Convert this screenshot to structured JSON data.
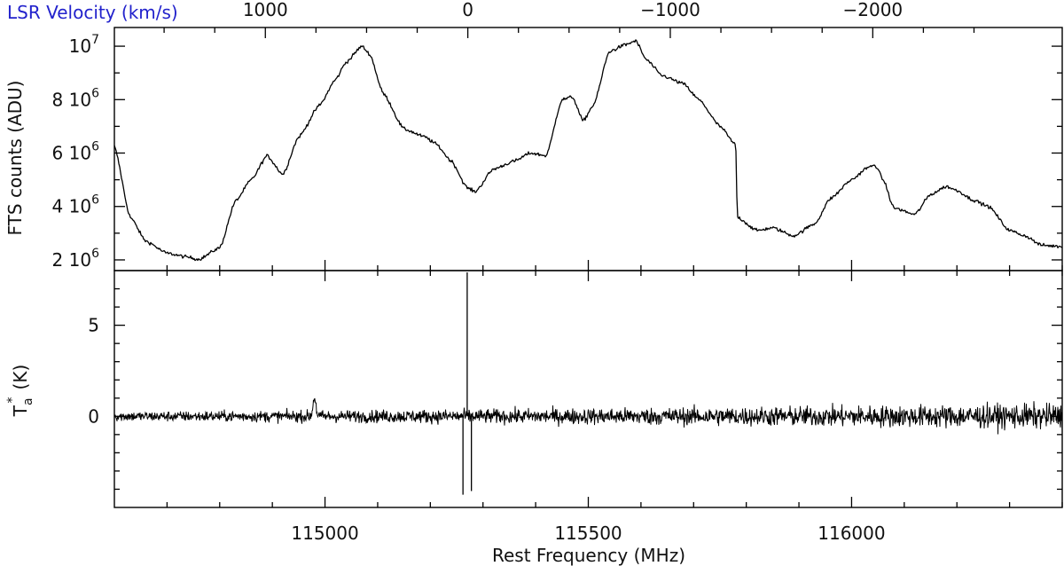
{
  "chart_data": [
    {
      "type": "line",
      "panel": "top",
      "ylabel": "FTS counts (ADU)",
      "top_axis_title": "LSR Velocity (km/s)",
      "top_axis_tick_labels": [
        "1000",
        "0",
        "−1000",
        "−2000"
      ],
      "top_axis_tick_values": [
        1000,
        0,
        -1000,
        -2000
      ],
      "ylim": [
        1600000,
        10700000
      ],
      "y_tick_labels": [
        {
          "mantissa": "2",
          "base": "10",
          "exp": "6",
          "value": 2000000
        },
        {
          "mantissa": "4",
          "base": "10",
          "exp": "6",
          "value": 4000000
        },
        {
          "mantissa": "6",
          "base": "10",
          "exp": "6",
          "value": 6000000
        },
        {
          "mantissa": "8",
          "base": "10",
          "exp": "6",
          "value": 8000000
        },
        {
          "mantissa": "",
          "base": "10",
          "exp": "7",
          "value": 10000000
        }
      ],
      "x": [
        114600,
        114630,
        114660,
        114700,
        114740,
        114760,
        114800,
        114830,
        114860,
        114890,
        114920,
        114950,
        114990,
        115020,
        115040,
        115070,
        115085,
        115110,
        115150,
        115190,
        115210,
        115240,
        115270,
        115285,
        115320,
        115360,
        115390,
        115420,
        115450,
        115470,
        115490,
        115510,
        115540,
        115570,
        115590,
        115610,
        115640,
        115680,
        115710,
        115750,
        115780,
        115783,
        115820,
        115850,
        115890,
        115930,
        115960,
        116000,
        116030,
        116045,
        116060,
        116080,
        116120,
        116150,
        116180,
        116200,
        116230,
        116260,
        116300,
        116330,
        116360,
        116400
      ],
      "values": [
        6250000,
        3600000,
        2700000,
        2250000,
        2100000,
        2020000,
        2450000,
        4200000,
        5000000,
        5900000,
        5200000,
        6600000,
        7800000,
        8750000,
        9400000,
        10000000,
        9700000,
        8250000,
        6900000,
        6600000,
        6350000,
        5700000,
        4700000,
        4550000,
        5400000,
        5700000,
        6000000,
        5900000,
        8000000,
        8100000,
        7200000,
        7800000,
        9800000,
        10050000,
        10200000,
        9500000,
        8900000,
        8600000,
        8000000,
        7000000,
        6300000,
        3600000,
        3100000,
        3200000,
        2900000,
        3350000,
        4300000,
        5000000,
        5450000,
        5550000,
        5000000,
        3950000,
        3700000,
        4450000,
        4750000,
        4600000,
        4250000,
        4000000,
        3100000,
        2900000,
        2550000,
        2500000
      ]
    },
    {
      "type": "line",
      "panel": "bottom",
      "xlabel": "Rest Frequency (MHz)",
      "ylabel_symbol": "T",
      "ylabel_sub": "a",
      "ylabel_sup": "*",
      "ylabel_unit": "(K)",
      "xlim": [
        114600,
        116400
      ],
      "ylim": [
        -5,
        8
      ],
      "x_tick_labels": [
        "115000",
        "115500",
        "116000"
      ],
      "x_tick_values": [
        115000,
        115500,
        116000
      ],
      "y_tick_labels": [
        "0",
        "5"
      ],
      "y_tick_values": [
        0,
        5
      ],
      "baseline": 0,
      "noise_rms_start": 0.35,
      "noise_rms_end": 0.9,
      "features": [
        {
          "x": 115270,
          "value": 7.9
        },
        {
          "x": 115262,
          "value": -4.3
        },
        {
          "x": 115278,
          "value": -4.1
        },
        {
          "x": 114980,
          "value": 1.3
        }
      ]
    }
  ]
}
